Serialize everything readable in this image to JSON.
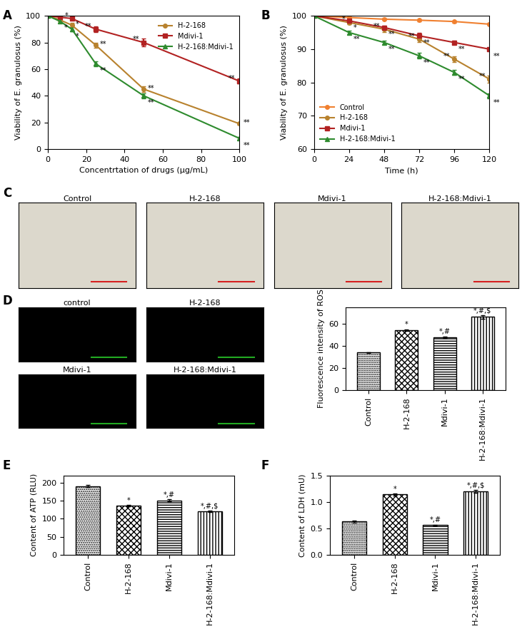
{
  "chart_data": [
    {
      "panel": "A",
      "type": "line",
      "x_label": "Concentrtation of drugs (μg/mL)",
      "y_label": "Viability of E. granulosus (%)",
      "x": [
        0,
        6.25,
        12.5,
        25,
        50,
        100
      ],
      "xlim": [
        0,
        100
      ],
      "xticks": [
        0,
        20,
        40,
        60,
        80,
        100
      ],
      "ylim": [
        0,
        100
      ],
      "yticks": [
        0,
        20,
        40,
        60,
        80,
        100
      ],
      "legend": "upper right",
      "series": [
        {
          "name": "H-2-168",
          "color": "#b8822e",
          "marker": "circle",
          "values": [
            100,
            97,
            93,
            78,
            45,
            19
          ],
          "errors": [
            0.5,
            1,
            1.5,
            2,
            2,
            1
          ],
          "significance": [
            null,
            null,
            "*",
            "**",
            "**",
            "**"
          ]
        },
        {
          "name": "Mdivi-1",
          "color": "#b22222",
          "marker": "square",
          "values": [
            100,
            99,
            98,
            90,
            80,
            51
          ],
          "errors": [
            0.5,
            1,
            1,
            2,
            3,
            2
          ],
          "significance": [
            null,
            null,
            "*",
            "**",
            "**",
            "**"
          ]
        },
        {
          "name": "H-2-168:Mdivi-1",
          "color": "#2e8b2e",
          "marker": "triangle",
          "values": [
            100,
            96,
            90,
            64,
            40,
            8
          ],
          "errors": [
            0.5,
            1,
            1.5,
            2,
            2,
            1
          ],
          "significance": [
            null,
            "*",
            "*",
            "**",
            "**",
            "**"
          ]
        }
      ]
    },
    {
      "panel": "B",
      "type": "line",
      "x_label": "Time (h)",
      "y_label": "Viability of E. granulosus (%)",
      "x": [
        0,
        24,
        48,
        72,
        96,
        120
      ],
      "xlim": [
        0,
        120
      ],
      "xticks": [
        0,
        24,
        48,
        72,
        96,
        120
      ],
      "ylim": [
        60,
        100
      ],
      "yticks": [
        60,
        70,
        80,
        90,
        100
      ],
      "legend": "lower left",
      "series": [
        {
          "name": "Control",
          "color": "#f08030",
          "marker": "circle",
          "values": [
            100,
            99.5,
            99,
            98.7,
            98.3,
            97.5
          ],
          "errors": [
            0.2,
            0.3,
            0.3,
            0.3,
            0.3,
            0.3
          ],
          "significance": [
            null,
            null,
            null,
            null,
            null,
            null
          ]
        },
        {
          "name": "H-2-168",
          "color": "#b8822e",
          "marker": "circle",
          "values": [
            100,
            98,
            96,
            93,
            87,
            81
          ],
          "errors": [
            0.3,
            0.6,
            0.8,
            0.8,
            0.8,
            1
          ],
          "significance": [
            null,
            "*",
            "**",
            "**",
            "**",
            "**"
          ]
        },
        {
          "name": "Mdivi-1",
          "color": "#b22222",
          "marker": "square",
          "values": [
            100,
            98.5,
            96.5,
            94,
            92,
            90
          ],
          "errors": [
            0.3,
            0.5,
            0.6,
            0.8,
            0.6,
            0.5
          ],
          "significance": [
            null,
            "*",
            "**",
            "**",
            "**",
            "**"
          ]
        },
        {
          "name": "H-2-168:Mdivi-1",
          "color": "#2e8b2e",
          "marker": "triangle",
          "values": [
            100,
            95,
            92,
            88,
            83,
            76
          ],
          "errors": [
            0.3,
            0.6,
            0.6,
            0.8,
            0.8,
            0.8
          ],
          "significance": [
            null,
            "**",
            "**",
            "**",
            "**",
            "**"
          ]
        }
      ]
    },
    {
      "panel": "C",
      "type": "image",
      "images": [
        "Control",
        "H-2-168",
        "Mdivi-1",
        "H-2-168:Mdivi-1"
      ]
    },
    {
      "panel": "D",
      "type": "image",
      "images": [
        "control",
        "H-2-168",
        "Mdivi-1",
        "H-2-168:Mdivi-1"
      ]
    },
    {
      "type": "bar",
      "y_label": "Fluorescence intensity of ROS",
      "categories": [
        "Control",
        "H-2-168",
        "Mdivi-1",
        "H-2-168:Mdivi-1"
      ],
      "values": [
        34,
        54.5,
        48,
        66.5
      ],
      "errors": [
        0.4,
        0.8,
        0.6,
        1.5
      ],
      "significance": [
        null,
        "*",
        "*,#",
        "*,#,$"
      ],
      "color": "#ffffff",
      "ylim": [
        0,
        75
      ],
      "yticks": [
        0,
        20,
        40,
        60
      ]
    },
    {
      "panel": "E",
      "type": "bar",
      "y_label": "Content of ATP (RLU)",
      "categories": [
        "Control",
        "H-2-168",
        "Mdivi-1",
        "H-2-168:Mdivi-1"
      ],
      "values": [
        190,
        136,
        151,
        121
      ],
      "errors": [
        3,
        2,
        3,
        2
      ],
      "significance": [
        null,
        "*",
        "*,#",
        "*,#,$"
      ],
      "color": "#ffffff",
      "ylim": [
        0,
        220
      ],
      "yticks": [
        0,
        50,
        100,
        150,
        200
      ]
    },
    {
      "panel": "F",
      "type": "bar",
      "y_label": "Content of LDH (mU)",
      "categories": [
        "Control",
        "H-2-168",
        "Mdivi-1",
        "H-2-168:Mdivi-1"
      ],
      "values": [
        0.63,
        1.14,
        0.56,
        1.2
      ],
      "errors": [
        0.02,
        0.02,
        0.01,
        0.03
      ],
      "significance": [
        null,
        "*",
        "*,#",
        "*,#,$"
      ],
      "color": "#ffffff",
      "ylim": [
        0,
        1.5
      ],
      "yticks": [
        {
          "value": 0,
          "label": "0.0"
        },
        {
          "value": 0.5,
          "label": "0.5"
        },
        {
          "value": 1.0,
          "label": "1.0"
        },
        {
          "value": 1.5,
          "label": "1.5"
        }
      ]
    }
  ]
}
